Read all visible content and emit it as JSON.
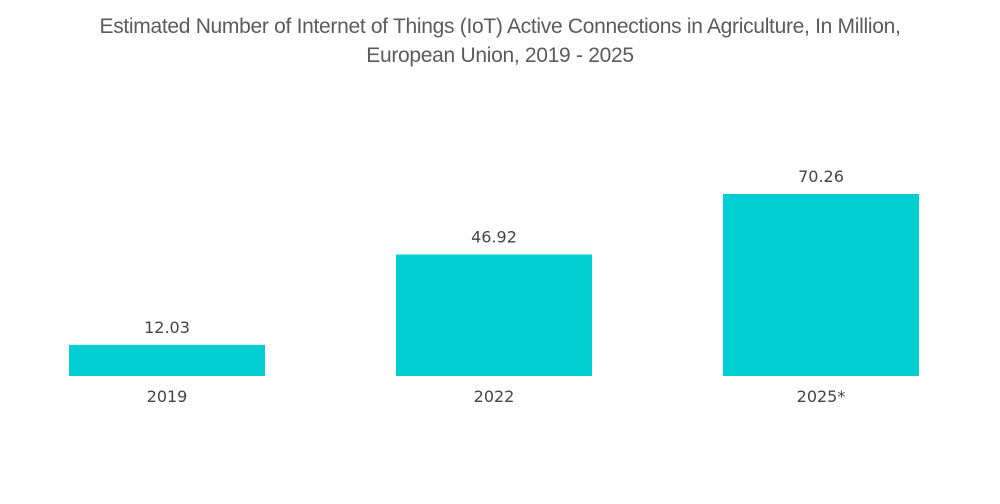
{
  "chart_data": {
    "type": "bar",
    "title": "Estimated Number of Internet of Things (IoT) Active Connections in Agriculture, In Million, European Union, 2019 - 2025",
    "title_lines": [
      "Estimated Number of Internet of Things (IoT) Active Connections in Agriculture, In Million,",
      "European Union, 2019 - 2025"
    ],
    "categories": [
      "2019",
      "2022",
      "2025*"
    ],
    "values": [
      12.03,
      46.92,
      70.26
    ],
    "data_labels": [
      "12.03",
      "46.92",
      "70.26"
    ],
    "xlabel": "",
    "ylabel": "",
    "ylim": [
      0,
      70.26
    ],
    "grid": false,
    "legend": "none",
    "bar_color": "#00CED1"
  }
}
